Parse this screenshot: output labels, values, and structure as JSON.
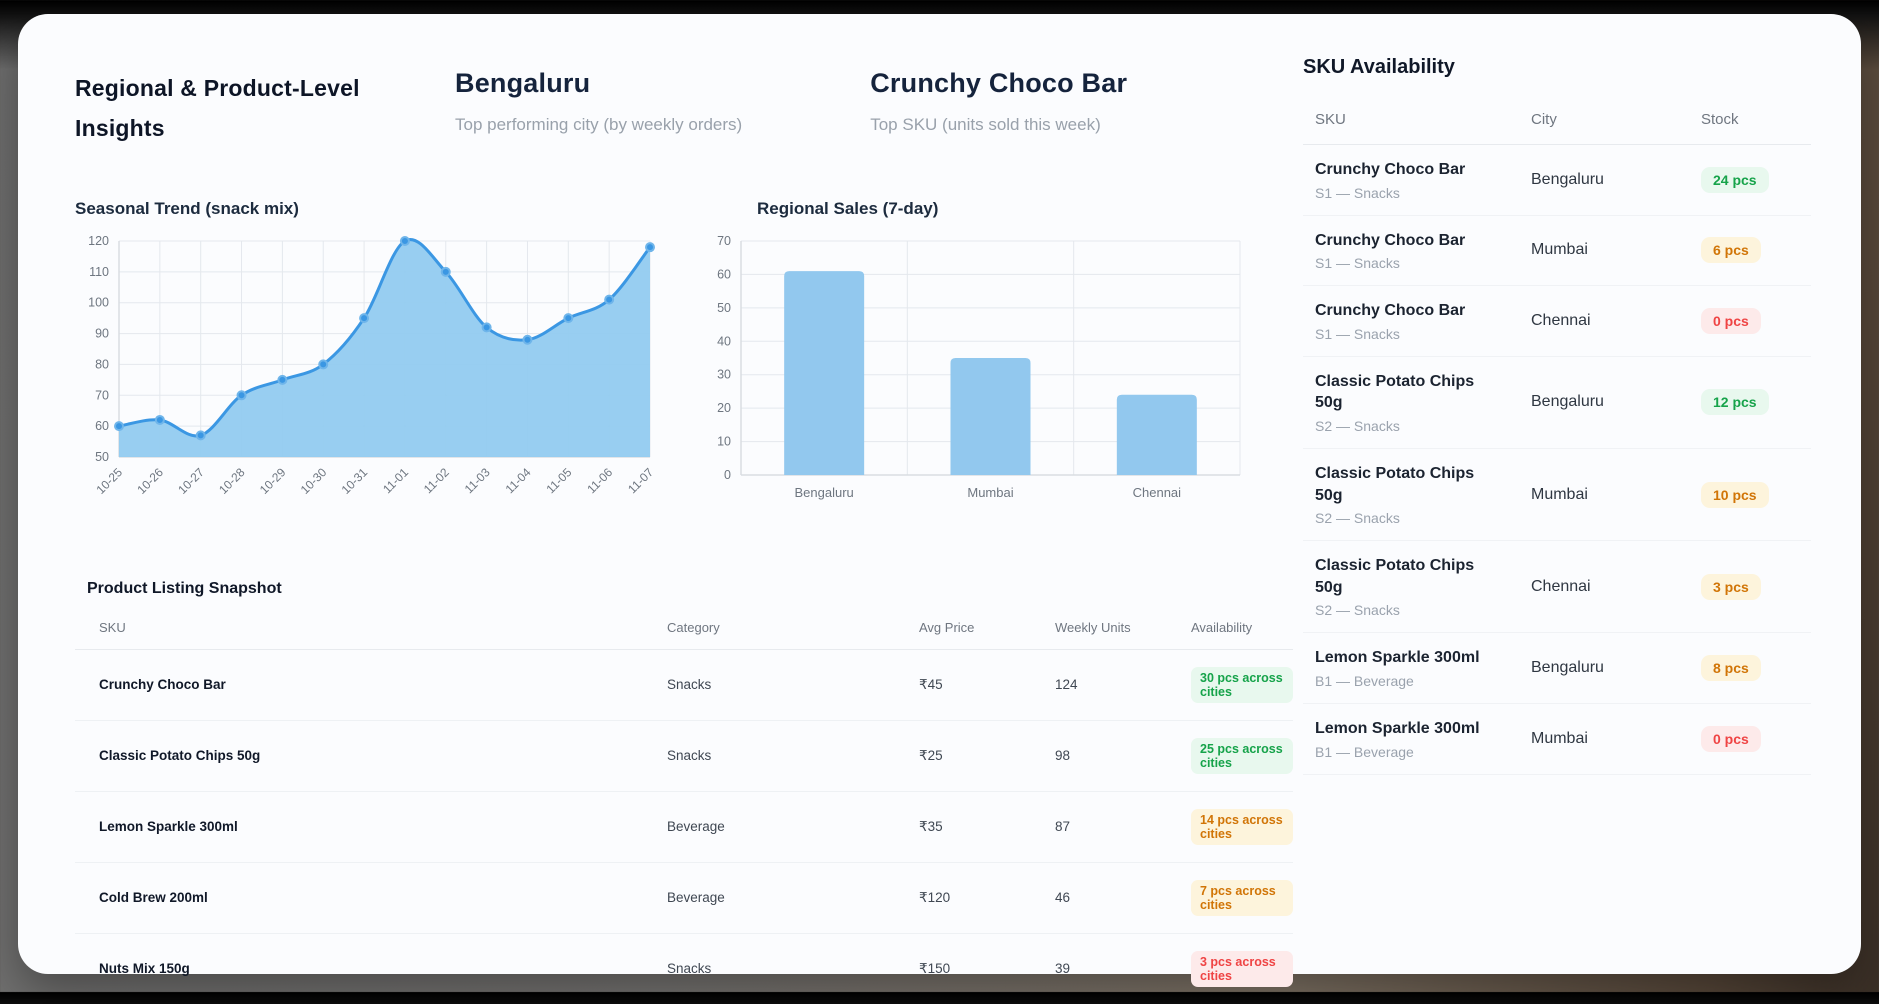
{
  "header": {
    "title": "Regional & Product-Level Insights",
    "top_city": {
      "value": "Bengaluru",
      "caption": "Top performing city (by weekly orders)"
    },
    "top_sku": {
      "value": "Crunchy Choco Bar",
      "caption": "Top SKU (units sold this week)"
    }
  },
  "chart_data": [
    {
      "type": "area",
      "title": "Seasonal Trend (snack mix)",
      "x": [
        "10-25",
        "10-26",
        "10-27",
        "10-28",
        "10-29",
        "10-30",
        "10-31",
        "11-01",
        "11-02",
        "11-03",
        "11-04",
        "11-05",
        "11-06",
        "11-07"
      ],
      "values": [
        60,
        62,
        57,
        70,
        75,
        80,
        95,
        120,
        110,
        92,
        88,
        95,
        101,
        118
      ],
      "ylim": [
        50,
        120
      ],
      "ytick_step": 10,
      "grid": true,
      "legend": "none",
      "line_color": "#3b97e3",
      "fill_color": "#92cbf0"
    },
    {
      "type": "bar",
      "title": "Regional Sales (7-day)",
      "categories": [
        "Bengaluru",
        "Mumbai",
        "Chennai"
      ],
      "values": [
        61,
        35,
        24
      ],
      "ylim": [
        0,
        70
      ],
      "ytick_step": 10,
      "grid": true,
      "legend": "none",
      "bar_color": "#92c8ee"
    }
  ],
  "product_table": {
    "title": "Product Listing Snapshot",
    "columns": [
      "SKU",
      "Category",
      "Avg Price",
      "Weekly Units",
      "Availability"
    ],
    "rows": [
      {
        "sku": "Crunchy Choco Bar",
        "category": "Snacks",
        "avg_price": "₹45",
        "weekly_units": "124",
        "availability": "30 pcs across cities",
        "status": "green"
      },
      {
        "sku": "Classic Potato Chips 50g",
        "category": "Snacks",
        "avg_price": "₹25",
        "weekly_units": "98",
        "availability": "25 pcs across cities",
        "status": "green"
      },
      {
        "sku": "Lemon Sparkle 300ml",
        "category": "Beverage",
        "avg_price": "₹35",
        "weekly_units": "87",
        "availability": "14 pcs across cities",
        "status": "amber"
      },
      {
        "sku": "Cold Brew 200ml",
        "category": "Beverage",
        "avg_price": "₹120",
        "weekly_units": "46",
        "availability": "7 pcs across cities",
        "status": "amber"
      },
      {
        "sku": "Nuts Mix 150g",
        "category": "Snacks",
        "avg_price": "₹150",
        "weekly_units": "39",
        "availability": "3 pcs across cities",
        "status": "red"
      }
    ]
  },
  "sku_panel": {
    "title": "SKU Availability",
    "columns": [
      "SKU",
      "City",
      "Stock"
    ],
    "rows": [
      {
        "name": "Crunchy Choco Bar",
        "meta": "S1 — Snacks",
        "city": "Bengaluru",
        "stock": "24 pcs",
        "status": "green"
      },
      {
        "name": "Crunchy Choco Bar",
        "meta": "S1 — Snacks",
        "city": "Mumbai",
        "stock": "6 pcs",
        "status": "amber"
      },
      {
        "name": "Crunchy Choco Bar",
        "meta": "S1 — Snacks",
        "city": "Chennai",
        "stock": "0 pcs",
        "status": "red"
      },
      {
        "name": "Classic Potato Chips 50g",
        "meta": "S2 — Snacks",
        "city": "Bengaluru",
        "stock": "12 pcs",
        "status": "green"
      },
      {
        "name": "Classic Potato Chips 50g",
        "meta": "S2 — Snacks",
        "city": "Mumbai",
        "stock": "10 pcs",
        "status": "amber"
      },
      {
        "name": "Classic Potato Chips 50g",
        "meta": "S2 — Snacks",
        "city": "Chennai",
        "stock": "3 pcs",
        "status": "amber"
      },
      {
        "name": "Lemon Sparkle 300ml",
        "meta": "B1 — Beverage",
        "city": "Bengaluru",
        "stock": "8 pcs",
        "status": "amber"
      },
      {
        "name": "Lemon Sparkle 300ml",
        "meta": "B1 — Beverage",
        "city": "Mumbai",
        "stock": "0 pcs",
        "status": "red"
      }
    ]
  },
  "status_colors": {
    "green": {
      "text": "#16a34a",
      "bg": "#e8f8ee"
    },
    "amber": {
      "text": "#d17507",
      "bg": "#fdf4dc"
    },
    "red": {
      "text": "#ef4444",
      "bg": "#fdeaea"
    }
  },
  "grid_color": "#e4e8ed",
  "axis_color": "#d9dde2",
  "tick_label_color": "#6e7680"
}
